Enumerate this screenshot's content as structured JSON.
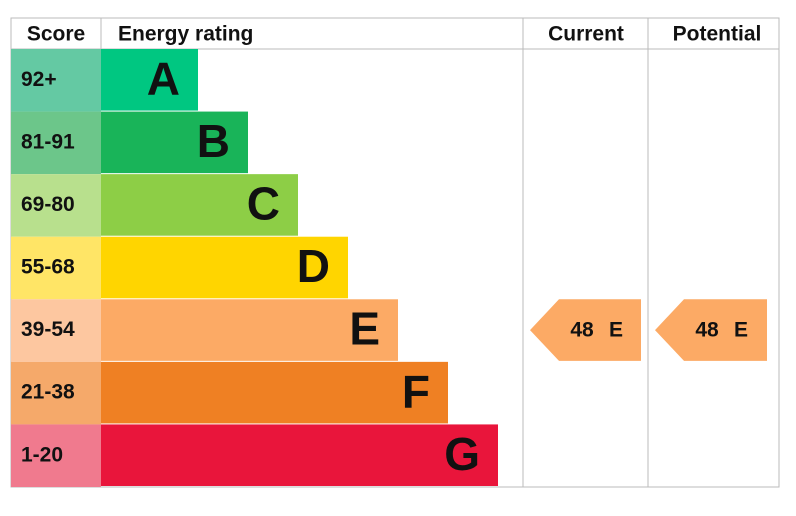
{
  "header": {
    "score": "Score",
    "energy_rating": "Energy rating",
    "current": "Current",
    "potential": "Potential"
  },
  "bands": [
    {
      "score": "92+",
      "letter": "A",
      "color": "#00c781",
      "score_color": "#64c9a3"
    },
    {
      "score": "81-91",
      "letter": "B",
      "color": "#19b459",
      "score_color": "#6cc68a"
    },
    {
      "score": "69-80",
      "letter": "C",
      "color": "#8dce46",
      "score_color": "#b8e08d"
    },
    {
      "score": "55-68",
      "letter": "D",
      "color": "#ffd500",
      "score_color": "#ffe566"
    },
    {
      "score": "39-54",
      "letter": "E",
      "color": "#fcaa65",
      "score_color": "#fdc7a0"
    },
    {
      "score": "21-38",
      "letter": "F",
      "color": "#ef8023",
      "score_color": "#f5a96a"
    },
    {
      "score": "1-20",
      "letter": "G",
      "color": "#e9153b",
      "score_color": "#f07a8e"
    }
  ],
  "current": {
    "score": 48,
    "band": "E"
  },
  "potential": {
    "score": 48,
    "band": "E"
  }
}
